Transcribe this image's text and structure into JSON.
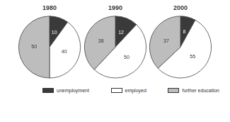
{
  "chart_data": [
    {
      "type": "pie",
      "title": "1980",
      "categories": [
        "unemployment",
        "employed",
        "further education"
      ],
      "values": [
        10,
        40,
        50
      ],
      "colors": [
        "#3a3a3a",
        "#ffffff",
        "#bdbdbd"
      ],
      "data_labels": true,
      "legend": "bottom"
    },
    {
      "type": "pie",
      "title": "1990",
      "categories": [
        "unemployment",
        "employed",
        "further education"
      ],
      "values": [
        12,
        50,
        38
      ],
      "colors": [
        "#3a3a3a",
        "#ffffff",
        "#bdbdbd"
      ],
      "data_labels": true,
      "legend": "bottom"
    },
    {
      "type": "pie",
      "title": "2000",
      "categories": [
        "unemployment",
        "employed",
        "further education"
      ],
      "values": [
        8,
        55,
        37
      ],
      "colors": [
        "#3a3a3a",
        "#ffffff",
        "#bdbdbd"
      ],
      "data_labels": true,
      "legend": "bottom"
    }
  ]
}
